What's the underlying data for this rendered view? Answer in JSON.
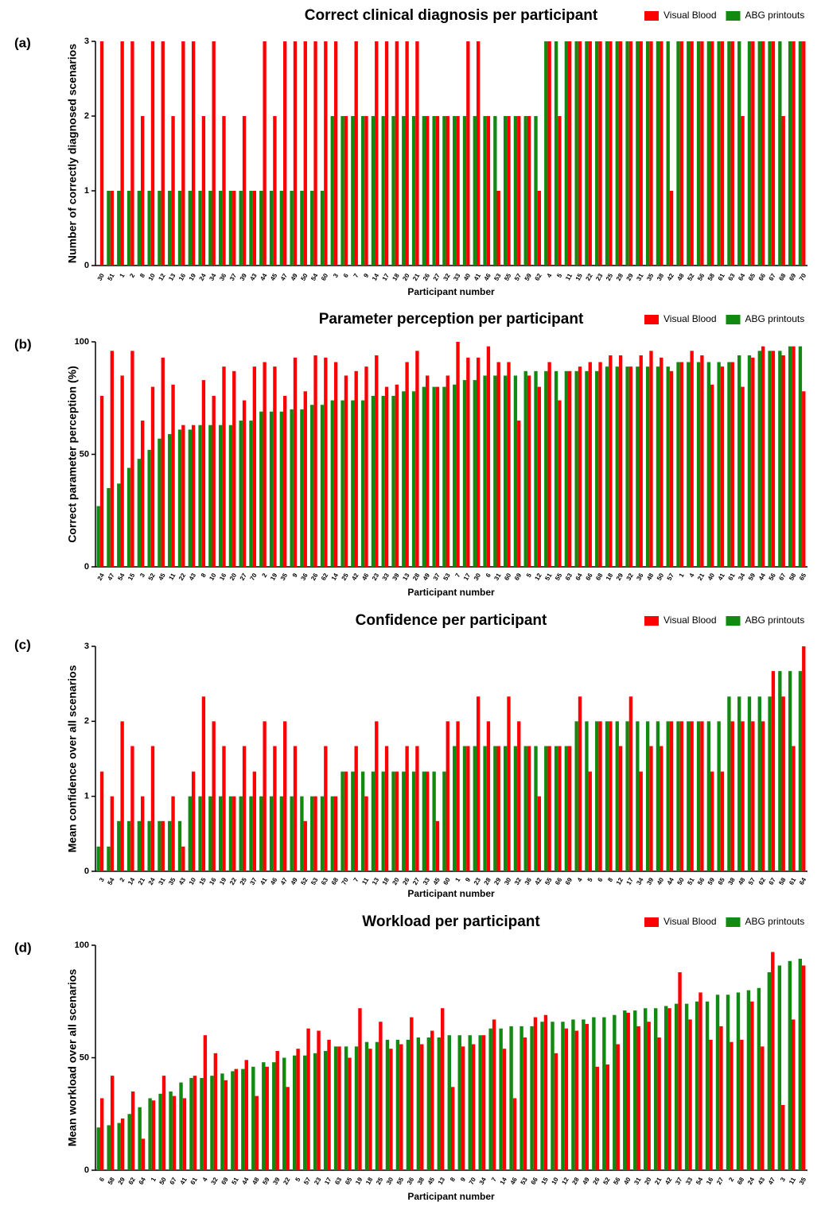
{
  "chart_data": [
    {
      "type": "bar",
      "panel_label": "(a)",
      "title": "Correct clinical diagnosis per participant",
      "x_label": "Participant number",
      "y_label": "Number of correctly diagnosed scenarios",
      "categories": [
        "30",
        "51",
        "1",
        "2",
        "8",
        "10",
        "12",
        "13",
        "16",
        "19",
        "24",
        "34",
        "36",
        "37",
        "39",
        "43",
        "44",
        "45",
        "47",
        "49",
        "50",
        "54",
        "60",
        "3",
        "6",
        "7",
        "9",
        "14",
        "17",
        "18",
        "20",
        "21",
        "26",
        "27",
        "32",
        "33",
        "40",
        "41",
        "46",
        "53",
        "55",
        "57",
        "59",
        "62",
        "4",
        "5",
        "11",
        "15",
        "22",
        "23",
        "25",
        "28",
        "29",
        "31",
        "35",
        "38",
        "42",
        "48",
        "52",
        "56",
        "58",
        "61",
        "63",
        "64",
        "65",
        "66",
        "67",
        "68",
        "69",
        "70"
      ],
      "series": [
        {
          "name": "ABG printouts",
          "color": "#128a12",
          "values": [
            0,
            1,
            1,
            1,
            1,
            1,
            1,
            1,
            1,
            1,
            1,
            1,
            1,
            1,
            1,
            1,
            1,
            1,
            1,
            1,
            1,
            1,
            1,
            2,
            2,
            2,
            2,
            2,
            2,
            2,
            2,
            2,
            2,
            2,
            2,
            2,
            2,
            2,
            2,
            2,
            2,
            2,
            2,
            2,
            3,
            3,
            3,
            3,
            3,
            3,
            3,
            3,
            3,
            3,
            3,
            3,
            3,
            3,
            3,
            3,
            3,
            3,
            3,
            3,
            3,
            3,
            3,
            3,
            3,
            3
          ]
        },
        {
          "name": "Visual Blood",
          "color": "#ff0000",
          "values": [
            3,
            1,
            3,
            3,
            2,
            3,
            3,
            2,
            3,
            3,
            2,
            3,
            2,
            1,
            2,
            1,
            3,
            2,
            3,
            3,
            3,
            3,
            3,
            3,
            2,
            3,
            2,
            3,
            3,
            3,
            3,
            3,
            2,
            2,
            2,
            2,
            3,
            3,
            2,
            1,
            2,
            2,
            2,
            1,
            3,
            2,
            3,
            3,
            3,
            3,
            3,
            3,
            3,
            3,
            3,
            3,
            1,
            3,
            3,
            3,
            3,
            3,
            3,
            2,
            3,
            3,
            3,
            2,
            3,
            3
          ]
        }
      ],
      "ylim": [
        0,
        3
      ],
      "yticks": [
        0,
        1,
        2,
        3
      ],
      "legend": "upper right"
    },
    {
      "type": "bar",
      "panel_label": "(b)",
      "title": "Parameter perception per participant",
      "x_label": "Participant number",
      "y_label": "Correct parameter perception (%)",
      "categories": [
        "24",
        "47",
        "54",
        "15",
        "3",
        "52",
        "45",
        "11",
        "22",
        "43",
        "8",
        "10",
        "16",
        "20",
        "27",
        "70",
        "2",
        "19",
        "35",
        "9",
        "36",
        "26",
        "62",
        "14",
        "25",
        "42",
        "46",
        "23",
        "33",
        "39",
        "13",
        "28",
        "49",
        "37",
        "53",
        "7",
        "17",
        "30",
        "6",
        "31",
        "60",
        "69",
        "5",
        "12",
        "51",
        "55",
        "63",
        "64",
        "66",
        "68",
        "18",
        "29",
        "32",
        "36",
        "48",
        "50",
        "57",
        "1",
        "4",
        "21",
        "40",
        "41",
        "61",
        "34",
        "59",
        "44",
        "56",
        "67",
        "58",
        "65"
      ],
      "series": [
        {
          "name": "ABG printouts",
          "color": "#128a12",
          "values": [
            27,
            35,
            37,
            44,
            48,
            52,
            57,
            59,
            61,
            61,
            63,
            63,
            63,
            63,
            65,
            65,
            69,
            69,
            69,
            70,
            70,
            72,
            72,
            74,
            74,
            74,
            74,
            76,
            76,
            76,
            78,
            78,
            80,
            80,
            80,
            81,
            83,
            83,
            85,
            85,
            85,
            85,
            87,
            87,
            87,
            87,
            87,
            87,
            87,
            87,
            89,
            89,
            89,
            89,
            89,
            89,
            89,
            91,
            91,
            91,
            91,
            91,
            91,
            94,
            94,
            96,
            96,
            96,
            98,
            98
          ]
        },
        {
          "name": "Visual Blood",
          "color": "#ff0000",
          "values": [
            76,
            96,
            85,
            96,
            65,
            80,
            93,
            81,
            63,
            63,
            83,
            76,
            89,
            87,
            74,
            89,
            91,
            89,
            76,
            93,
            78,
            94,
            93,
            91,
            85,
            87,
            89,
            94,
            80,
            81,
            91,
            96,
            85,
            80,
            85,
            100,
            93,
            93,
            98,
            91,
            91,
            65,
            85,
            80,
            91,
            74,
            87,
            89,
            91,
            91,
            94,
            94,
            89,
            94,
            96,
            93,
            87,
            91,
            96,
            94,
            81,
            89,
            91,
            80,
            93,
            98,
            96,
            94,
            98,
            78
          ]
        }
      ],
      "ylim": [
        0,
        100
      ],
      "yticks": [
        0,
        50,
        100
      ],
      "legend": "upper right"
    },
    {
      "type": "bar",
      "panel_label": "(c)",
      "title": "Confidence per participant",
      "x_label": "Participant number",
      "y_label": "Mean confidence over all scenarios",
      "categories": [
        "3",
        "54",
        "2",
        "14",
        "21",
        "24",
        "31",
        "35",
        "43",
        "10",
        "15",
        "16",
        "19",
        "22",
        "25",
        "37",
        "41",
        "46",
        "47",
        "49",
        "52",
        "53",
        "63",
        "68",
        "70",
        "7",
        "11",
        "13",
        "18",
        "20",
        "26",
        "27",
        "33",
        "45",
        "60",
        "1",
        "9",
        "23",
        "28",
        "29",
        "30",
        "32",
        "36",
        "42",
        "55",
        "66",
        "69",
        "4",
        "5",
        "6",
        "8",
        "12",
        "17",
        "34",
        "39",
        "40",
        "44",
        "50",
        "51",
        "56",
        "59",
        "65",
        "38",
        "48",
        "57",
        "62",
        "67",
        "58",
        "61",
        "64"
      ],
      "series": [
        {
          "name": "ABG printouts",
          "color": "#128a12",
          "values": [
            0.33,
            0.33,
            0.67,
            0.67,
            0.67,
            0.67,
            0.67,
            0.67,
            0.67,
            1,
            1,
            1,
            1,
            1,
            1,
            1,
            1,
            1,
            1,
            1,
            1,
            1,
            1,
            1,
            1.33,
            1.33,
            1.33,
            1.33,
            1.33,
            1.33,
            1.33,
            1.33,
            1.33,
            1.33,
            1.33,
            1.67,
            1.67,
            1.67,
            1.67,
            1.67,
            1.67,
            1.67,
            1.67,
            1.67,
            1.67,
            1.67,
            1.67,
            2,
            2,
            2,
            2,
            2,
            2,
            2,
            2,
            2,
            2,
            2,
            2,
            2,
            2,
            2,
            2.33,
            2.33,
            2.33,
            2.33,
            2.33,
            2.67,
            2.67,
            2.67
          ]
        },
        {
          "name": "Visual Blood",
          "color": "#ff0000",
          "values": [
            1.33,
            1,
            2,
            1.67,
            1,
            1.67,
            0.67,
            1,
            0.33,
            1.33,
            2.33,
            2,
            1.67,
            1,
            1.67,
            1.33,
            2,
            1.67,
            2,
            1.67,
            0.67,
            1,
            1.67,
            1,
            1.33,
            1.67,
            1,
            2,
            1.67,
            1.33,
            1.67,
            1.67,
            1.33,
            0.67,
            2,
            2,
            1.67,
            2.33,
            2,
            1.67,
            2.33,
            2,
            1.67,
            1,
            1.67,
            1.67,
            1.67,
            2.33,
            1.33,
            2,
            2,
            1.67,
            2.33,
            1.33,
            1.67,
            1.67,
            2,
            2,
            2,
            2,
            1.33,
            1.33,
            2,
            2,
            2,
            2,
            2.67,
            2.33,
            1.67,
            3
          ]
        }
      ],
      "ylim": [
        0,
        3
      ],
      "yticks": [
        0,
        1,
        2,
        3
      ],
      "legend": "upper right"
    },
    {
      "type": "bar",
      "panel_label": "(d)",
      "title": "Workload per participant",
      "x_label": "Participant number",
      "y_label": "Mean workload over all scenarios",
      "categories": [
        "6",
        "58",
        "29",
        "62",
        "64",
        "1",
        "50",
        "67",
        "41",
        "61",
        "4",
        "32",
        "69",
        "51",
        "44",
        "48",
        "59",
        "39",
        "22",
        "5",
        "57",
        "23",
        "17",
        "63",
        "65",
        "19",
        "18",
        "25",
        "30",
        "55",
        "36",
        "38",
        "45",
        "13",
        "8",
        "9",
        "70",
        "34",
        "7",
        "14",
        "46",
        "53",
        "66",
        "15",
        "10",
        "12",
        "28",
        "49",
        "26",
        "52",
        "56",
        "40",
        "31",
        "20",
        "21",
        "42",
        "37",
        "33",
        "54",
        "16",
        "27",
        "2",
        "68",
        "24",
        "43",
        "47",
        "3",
        "11",
        "35"
      ],
      "series": [
        {
          "name": "ABG printouts",
          "color": "#128a12",
          "values": [
            19,
            20,
            21,
            25,
            28,
            32,
            34,
            35,
            39,
            41,
            41,
            42,
            43,
            44,
            45,
            46,
            48,
            48,
            50,
            51,
            51,
            52,
            53,
            55,
            55,
            55,
            57,
            57,
            58,
            58,
            58,
            59,
            59,
            59,
            60,
            60,
            60,
            60,
            63,
            63,
            64,
            64,
            64,
            66,
            66,
            66,
            67,
            67,
            68,
            68,
            69,
            71,
            71,
            72,
            72,
            73,
            74,
            74,
            75,
            75,
            78,
            78,
            79,
            80,
            81,
            88,
            91,
            93,
            94
          ]
        },
        {
          "name": "Visual Blood",
          "color": "#ff0000",
          "values": [
            32,
            42,
            23,
            35,
            14,
            31,
            42,
            33,
            32,
            42,
            60,
            52,
            40,
            45,
            49,
            33,
            46,
            53,
            37,
            54,
            63,
            62,
            58,
            55,
            50,
            72,
            54,
            66,
            54,
            56,
            68,
            56,
            62,
            72,
            37,
            55,
            56,
            60,
            67,
            54,
            32,
            59,
            68,
            69,
            52,
            63,
            62,
            65,
            46,
            47,
            56,
            70,
            64,
            66,
            59,
            72,
            88,
            67,
            79,
            58,
            64,
            57,
            58,
            75,
            55,
            97,
            29,
            67,
            91
          ]
        }
      ],
      "ylim": [
        0,
        100
      ],
      "yticks": [
        0,
        50,
        100
      ],
      "legend": "upper right"
    }
  ]
}
